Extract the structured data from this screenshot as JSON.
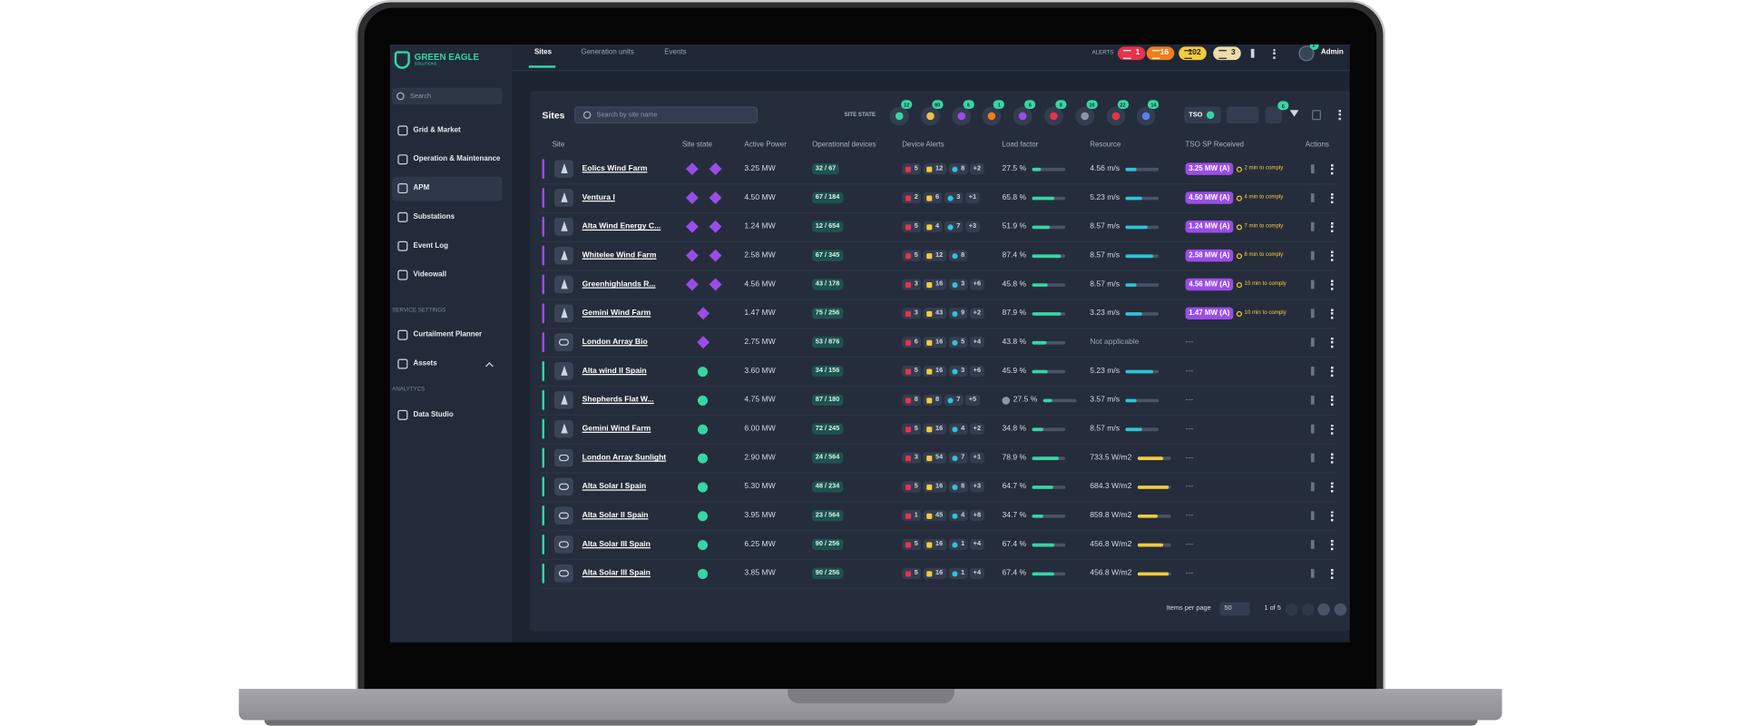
{
  "header": {
    "logo": "GREEN EAGLE",
    "logo_sub": "SOLUTIONS",
    "tabs": [
      "Sites",
      "Generation units",
      "Events"
    ],
    "alerts_label": "ALERTS",
    "alerts": [
      "1",
      "16",
      "102",
      "3"
    ],
    "user_badge": "1",
    "user": "Admin"
  },
  "sidebar": {
    "search": "Search",
    "items": [
      "Grid & Market",
      "Operation & Maintenance",
      "APM",
      "Substations",
      "Event Log",
      "Videowall"
    ],
    "section1": "SERVICE SETTINGS",
    "items2": [
      "Curtailment Planner",
      "Assets"
    ],
    "section2": "ANALYTYCS",
    "items3": [
      "Data Studio"
    ]
  },
  "sites": {
    "title": "Sites",
    "search": "Search by site name",
    "state_label": "SITE STATE",
    "state_counts": [
      "12",
      "80",
      "6",
      "1",
      "6",
      "8",
      "10",
      "22",
      "14"
    ],
    "tso": "TSO",
    "filter_badge": "6",
    "columns": [
      "Site",
      "Site state",
      "Active Power",
      "Operational devices",
      "Device Alerts",
      "Load factor",
      "Resource",
      "TSO SP Received",
      "Actions"
    ],
    "rows": [
      {
        "name": "Eolics Wind Farm",
        "kind": "wind",
        "state": "curtailed",
        "power": "3.25 MW",
        "ops": "32 / 67",
        "alerts": [
          "5",
          "12",
          "8",
          "+2"
        ],
        "load": "27.5 %",
        "resource": "4.56 m/s",
        "tso": "3.25 MW (A)",
        "comply": "2 min to comply"
      },
      {
        "name": "Ventura I",
        "kind": "wind",
        "state": "curtailed",
        "power": "4.50 MW",
        "ops": "67 / 184",
        "alerts": [
          "2",
          "6",
          "3",
          "+1"
        ],
        "load": "65.8 %",
        "resource": "5.23 m/s",
        "tso": "4.50 MW (A)",
        "comply": "4 min to comply"
      },
      {
        "name": "Alta Wind Energy C...",
        "kind": "wind",
        "state": "curtailed",
        "power": "1.24 MW",
        "ops": "12 / 654",
        "alerts": [
          "5",
          "4",
          "7",
          "+3"
        ],
        "load": "51.9 %",
        "resource": "8.57 m/s",
        "tso": "1.24 MW (A)",
        "comply": "7 min to comply"
      },
      {
        "name": "Whitelee Wind Farm",
        "kind": "wind",
        "state": "curtailed",
        "power": "2.58 MW",
        "ops": "67 / 345",
        "alerts": [
          "5",
          "12",
          "8"
        ],
        "load": "87.4 %",
        "resource": "8.57 m/s",
        "tso": "2.58 MW (A)",
        "comply": "8 min to comply"
      },
      {
        "name": "Greenhighlands R...",
        "kind": "wind",
        "state": "curtailed",
        "power": "4.56 MW",
        "ops": "43 / 178",
        "alerts": [
          "3",
          "16",
          "3",
          "+6"
        ],
        "load": "45.8 %",
        "resource": "8.57 m/s",
        "tso": "4.56 MW (A)",
        "comply": "10 min to comply"
      },
      {
        "name": "Gemini Wind Farm",
        "kind": "wind",
        "state": "limited",
        "power": "1.47 MW",
        "ops": "75 / 256",
        "alerts": [
          "3",
          "43",
          "9",
          "+2"
        ],
        "load": "87.9 %",
        "resource": "3.23 m/s",
        "tso": "1.47 MW (A)",
        "comply": "10 min to comply"
      },
      {
        "name": "London Array Bio",
        "kind": "bio",
        "state": "limited",
        "power": "2.75 MW",
        "ops": "53 / 876",
        "alerts": [
          "6",
          "16",
          "5",
          "+4"
        ],
        "load": "43.8 %",
        "resource": "Not applicable",
        "tso": "---"
      },
      {
        "name": "Alta wind II Spain",
        "kind": "wind",
        "state": "ok",
        "power": "3.60 MW",
        "ops": "34 / 156",
        "alerts": [
          "5",
          "16",
          "3",
          "+6"
        ],
        "load": "45.9 %",
        "resource": "5.23 m/s",
        "tso": "---"
      },
      {
        "name": "Shepherds Flat W...",
        "kind": "wind",
        "state": "ok",
        "power": "4.75 MW",
        "ops": "87 / 180",
        "alerts": [
          "8",
          "8",
          "7",
          "+5"
        ],
        "load": "27.5 %",
        "resource": "3.57 m/s",
        "tso": "---"
      },
      {
        "name": "Gemini Wind Farm",
        "kind": "wind",
        "state": "ok",
        "power": "6.00 MW",
        "ops": "72 / 245",
        "alerts": [
          "5",
          "16",
          "4",
          "+2"
        ],
        "load": "34.8 %",
        "resource": "8.57 m/s",
        "tso": "---"
      },
      {
        "name": "London Array Sunlight",
        "kind": "solar",
        "state": "ok",
        "power": "2.90 MW",
        "ops": "24 / 564",
        "alerts": [
          "3",
          "54",
          "7",
          "+1"
        ],
        "load": "78.9 %",
        "resource": "733.5 W/m2",
        "tso": "---"
      },
      {
        "name": "Alta Solar I Spain",
        "kind": "solar",
        "state": "ok",
        "power": "5.30 MW",
        "ops": "48 / 234",
        "alerts": [
          "5",
          "16",
          "8",
          "+3"
        ],
        "load": "64.7 %",
        "resource": "684.3 W/m2",
        "tso": "---"
      },
      {
        "name": "Alta Solar II Spain",
        "kind": "solar",
        "state": "ok",
        "power": "3.95 MW",
        "ops": "23 / 564",
        "alerts": [
          "1",
          "45",
          "4",
          "+8"
        ],
        "load": "34.7 %",
        "resource": "859.8 W/m2",
        "tso": "---"
      },
      {
        "name": "Alta Solar III Spain",
        "kind": "solar",
        "state": "ok",
        "power": "6.25 MW",
        "ops": "90 / 256",
        "alerts": [
          "5",
          "16",
          "1",
          "+4"
        ],
        "load": "67.4 %",
        "resource": "456.8 W/m2",
        "tso": "---"
      },
      {
        "name": "Alta Solar III Spain",
        "kind": "solar",
        "state": "ok",
        "power": "3.85 MW",
        "ops": "90 / 256",
        "alerts": [
          "5",
          "16",
          "1",
          "+4"
        ],
        "load": "67.4 %",
        "resource": "456.8 W/m2",
        "tso": "---"
      }
    ],
    "items_per_page": "Items per page",
    "per_page": "50",
    "pages": "1 of 5"
  }
}
